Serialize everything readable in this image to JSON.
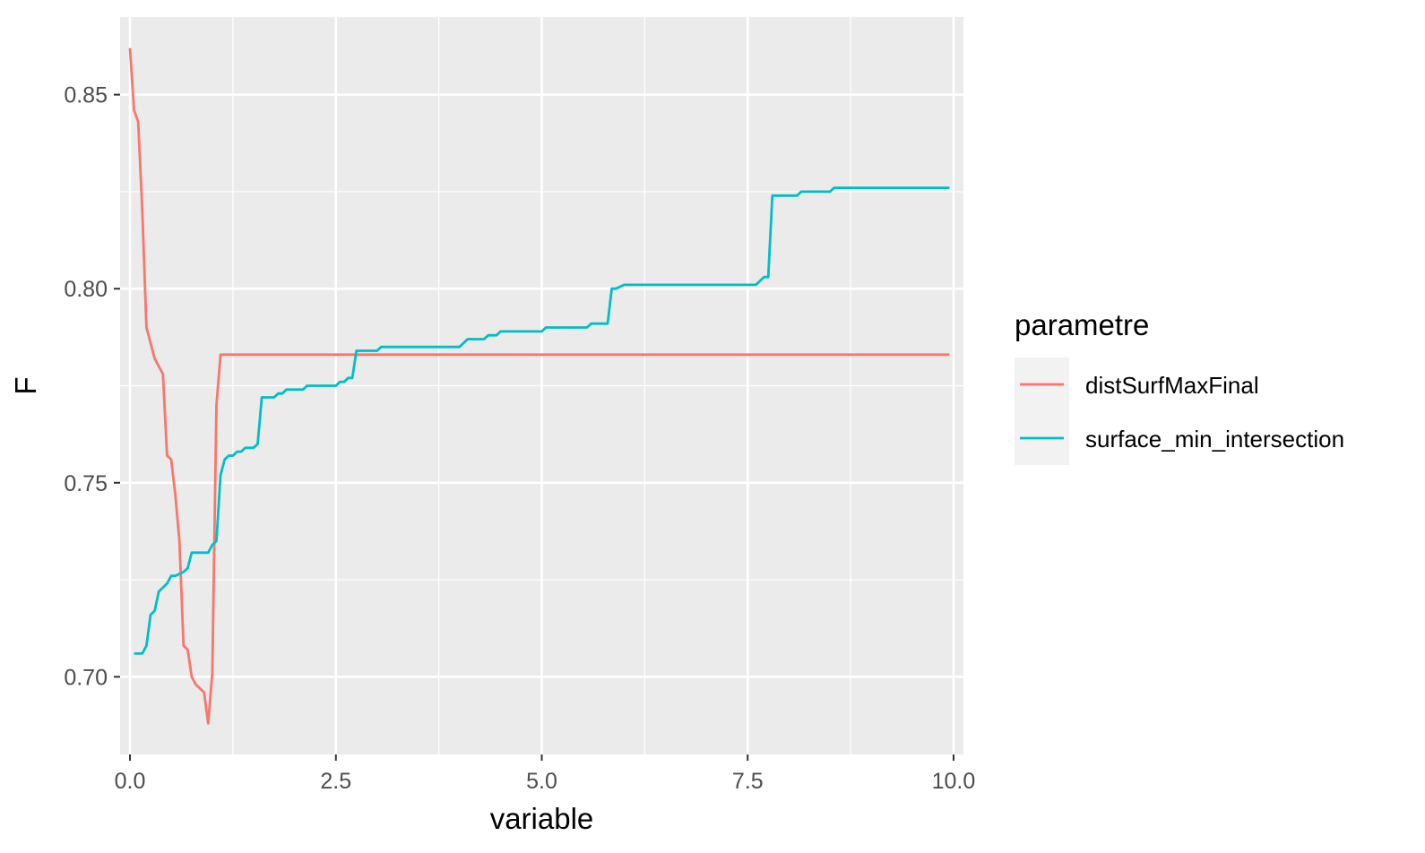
{
  "chart_data": {
    "type": "line",
    "xlabel": "variable",
    "ylabel": "F",
    "xlim": [
      -0.12,
      10.12
    ],
    "ylim": [
      0.68,
      0.87
    ],
    "x_ticks": [
      0.0,
      2.5,
      5.0,
      7.5,
      10.0
    ],
    "x_tick_labels": [
      "0.0",
      "2.5",
      "5.0",
      "7.5",
      "10.0"
    ],
    "y_ticks": [
      0.7,
      0.75,
      0.8,
      0.85
    ],
    "y_tick_labels": [
      "0.70",
      "0.75",
      "0.80",
      "0.85"
    ],
    "grid": true,
    "legend": {
      "title": "parametre",
      "position": "right"
    },
    "panel_background": "#ebebeb",
    "series": [
      {
        "name": "distSurfMaxFinal",
        "color": "#F8766D",
        "x": [
          0.0,
          0.05,
          0.1,
          0.15,
          0.2,
          0.3,
          0.4,
          0.45,
          0.5,
          0.55,
          0.6,
          0.65,
          0.7,
          0.75,
          0.8,
          0.9,
          0.95,
          1.0,
          1.05,
          1.1,
          1.5,
          2.0,
          3.0,
          4.0,
          5.0,
          6.0,
          7.0,
          8.0,
          9.0,
          9.95
        ],
        "y": [
          0.862,
          0.846,
          0.843,
          0.82,
          0.79,
          0.782,
          0.778,
          0.757,
          0.756,
          0.747,
          0.735,
          0.708,
          0.707,
          0.7,
          0.698,
          0.696,
          0.688,
          0.701,
          0.77,
          0.783,
          0.783,
          0.783,
          0.783,
          0.783,
          0.783,
          0.783,
          0.783,
          0.783,
          0.783,
          0.783
        ]
      },
      {
        "name": "surface_min_intersection",
        "color": "#00BFC4",
        "x": [
          0.05,
          0.15,
          0.2,
          0.25,
          0.3,
          0.35,
          0.45,
          0.5,
          0.55,
          0.65,
          0.7,
          0.75,
          0.8,
          0.95,
          1.0,
          1.05,
          1.1,
          1.15,
          1.2,
          1.25,
          1.3,
          1.35,
          1.4,
          1.5,
          1.55,
          1.6,
          1.75,
          1.8,
          1.85,
          1.9,
          1.95,
          2.1,
          2.15,
          2.5,
          2.55,
          2.6,
          2.65,
          2.7,
          2.75,
          2.8,
          3.0,
          3.05,
          4.0,
          4.05,
          4.1,
          4.3,
          4.35,
          4.45,
          4.5,
          5.0,
          5.05,
          5.55,
          5.6,
          5.8,
          5.85,
          5.9,
          6.0,
          6.3,
          7.6,
          7.7,
          7.75,
          7.8,
          8.1,
          8.15,
          8.5,
          8.55,
          9.0,
          9.95
        ],
        "y": [
          0.706,
          0.706,
          0.708,
          0.716,
          0.717,
          0.722,
          0.724,
          0.726,
          0.726,
          0.727,
          0.728,
          0.732,
          0.732,
          0.732,
          0.734,
          0.735,
          0.752,
          0.756,
          0.757,
          0.757,
          0.758,
          0.758,
          0.759,
          0.759,
          0.76,
          0.772,
          0.772,
          0.773,
          0.773,
          0.774,
          0.774,
          0.774,
          0.775,
          0.775,
          0.776,
          0.776,
          0.777,
          0.777,
          0.784,
          0.784,
          0.784,
          0.785,
          0.785,
          0.786,
          0.787,
          0.787,
          0.788,
          0.788,
          0.789,
          0.789,
          0.79,
          0.79,
          0.791,
          0.791,
          0.8,
          0.8,
          0.801,
          0.801,
          0.801,
          0.803,
          0.803,
          0.824,
          0.824,
          0.825,
          0.825,
          0.826,
          0.826,
          0.826
        ]
      }
    ]
  }
}
